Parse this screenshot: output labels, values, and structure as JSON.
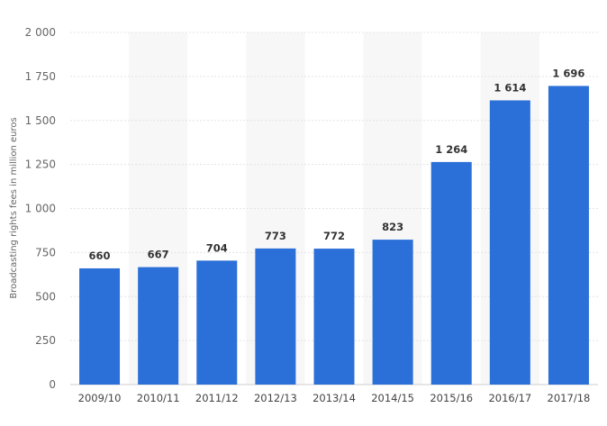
{
  "chart_data": {
    "type": "bar",
    "ylabel": "Broadcasting rights fees in million euros",
    "categories": [
      "2009/10",
      "2010/11",
      "2011/12",
      "2012/13",
      "2013/14",
      "2014/15",
      "2015/16",
      "2016/17",
      "2017/18"
    ],
    "values": [
      660,
      667,
      704,
      773,
      772,
      823,
      1264,
      1614,
      1696
    ],
    "value_labels": [
      "660",
      "667",
      "704",
      "773",
      "772",
      "823",
      "1 264",
      "1 614",
      "1 696"
    ],
    "ylim": [
      0,
      2000
    ],
    "yticks": [
      0,
      250,
      500,
      750,
      1000,
      1250,
      1500,
      1750,
      2000
    ],
    "ytick_labels": [
      "0",
      "250",
      "500",
      "750",
      "1 000",
      "1 250",
      "1 500",
      "1 750",
      "2 000"
    ],
    "grid": true,
    "colors": {
      "bar": "#2b6fd8",
      "band": "#f7f7f7",
      "grid": "#e4e4e4"
    }
  }
}
